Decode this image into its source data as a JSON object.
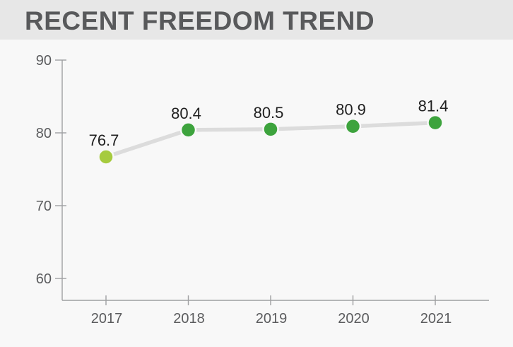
{
  "header": {
    "title": "RECENT FREEDOM TREND"
  },
  "chart_data": {
    "type": "line",
    "title": "RECENT FREEDOM TREND",
    "categories": [
      "2017",
      "2018",
      "2019",
      "2020",
      "2021"
    ],
    "values": [
      76.7,
      80.4,
      80.5,
      80.9,
      81.4
    ],
    "value_labels": [
      "76.7",
      "80.4",
      "80.5",
      "80.9",
      "81.4"
    ],
    "xlabel": "",
    "ylabel": "",
    "ylim": [
      60,
      90
    ],
    "yticks": [
      90,
      80,
      70,
      60
    ],
    "grid": false,
    "legend_position": "none",
    "line_color": "#dcdcdc",
    "point_colors": [
      "#a6cb3e",
      "#3da33d",
      "#3da33d",
      "#3da33d",
      "#3da33d"
    ]
  },
  "colors": {
    "banner_bg": "#e7e7e7",
    "page_bg": "#f8f8f8",
    "title": "#58595b",
    "axis": "#9e9fa1",
    "tick_label": "#5b5c5e",
    "value_label": "#1f1f1f"
  }
}
